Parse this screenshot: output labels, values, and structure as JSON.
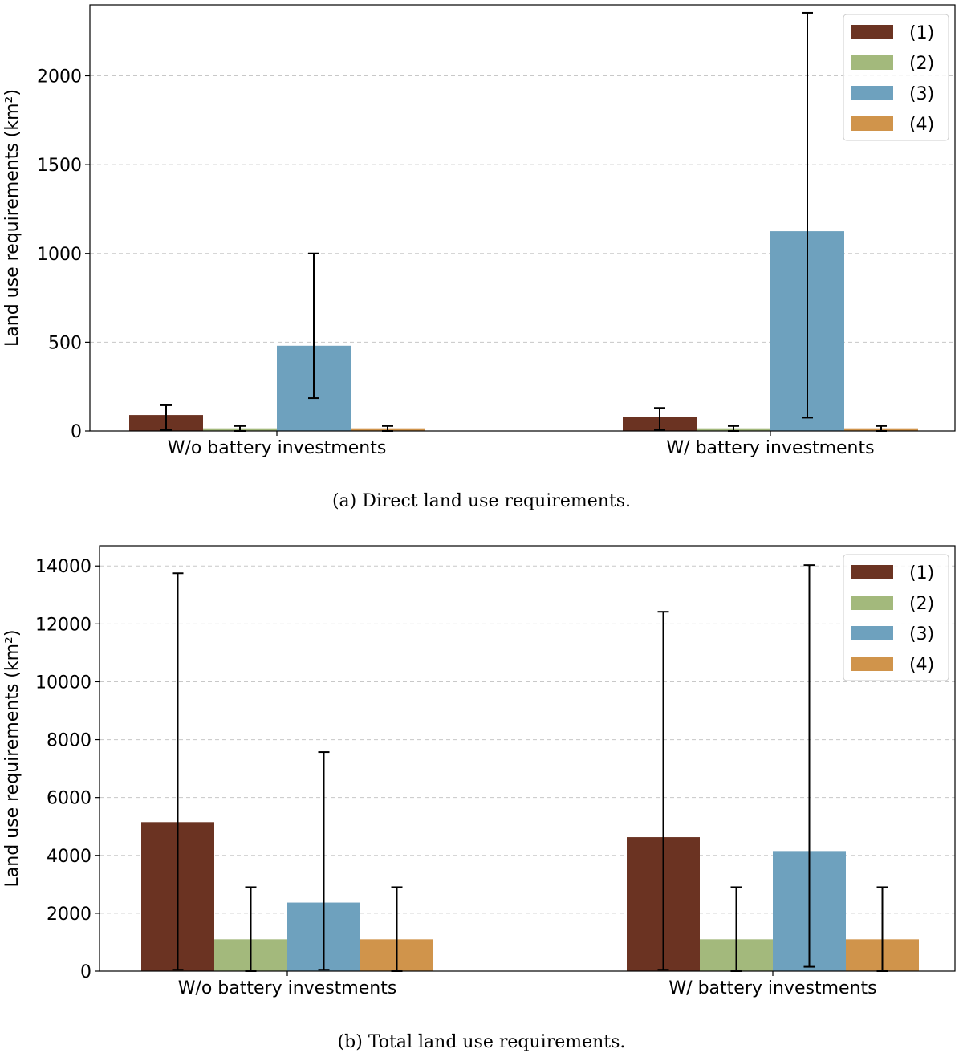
{
  "colors": {
    "s1": "#6b3322",
    "s2": "#a3b97c",
    "s3": "#6ea1be",
    "s4": "#d0944b"
  },
  "chart_data": [
    {
      "type": "bar",
      "caption": "(a) Direct land use requirements.",
      "title": "",
      "xlabel": "",
      "ylabel": "Land use requirements (km²)",
      "ylim": [
        0,
        2400
      ],
      "yticks": [
        0,
        500,
        1000,
        1500,
        2000
      ],
      "grid": true,
      "legend_position": "top-right",
      "categories": [
        "W/o battery investments",
        "W/ battery investments"
      ],
      "series": [
        {
          "name": "(1)",
          "values": [
            90,
            80
          ],
          "err_low": [
            5,
            5
          ],
          "err_high": [
            145,
            130
          ]
        },
        {
          "name": "(2)",
          "values": [
            15,
            15
          ],
          "err_low": [
            0,
            0
          ],
          "err_high": [
            28,
            28
          ]
        },
        {
          "name": "(3)",
          "values": [
            480,
            1125
          ],
          "err_low": [
            185,
            75
          ],
          "err_high": [
            1000,
            2355
          ]
        },
        {
          "name": "(4)",
          "values": [
            15,
            15
          ],
          "err_low": [
            0,
            0
          ],
          "err_high": [
            28,
            28
          ]
        }
      ]
    },
    {
      "type": "bar",
      "caption": "(b) Total land use requirements.",
      "title": "",
      "xlabel": "",
      "ylabel": "Land use requirements (km²)",
      "ylim": [
        0,
        14700
      ],
      "yticks": [
        0,
        2000,
        4000,
        6000,
        8000,
        10000,
        12000,
        14000
      ],
      "grid": true,
      "legend_position": "top-right",
      "categories": [
        "W/o battery investments",
        "W/ battery investments"
      ],
      "series": [
        {
          "name": "(1)",
          "values": [
            5150,
            4630
          ],
          "err_low": [
            50,
            50
          ],
          "err_high": [
            13750,
            12420
          ]
        },
        {
          "name": "(2)",
          "values": [
            1100,
            1100
          ],
          "err_low": [
            0,
            0
          ],
          "err_high": [
            2900,
            2900
          ]
        },
        {
          "name": "(3)",
          "values": [
            2370,
            4150
          ],
          "err_low": [
            50,
            150
          ],
          "err_high": [
            7570,
            14030
          ]
        },
        {
          "name": "(4)",
          "values": [
            1100,
            1100
          ],
          "err_low": [
            0,
            0
          ],
          "err_high": [
            2900,
            2900
          ]
        }
      ]
    }
  ]
}
